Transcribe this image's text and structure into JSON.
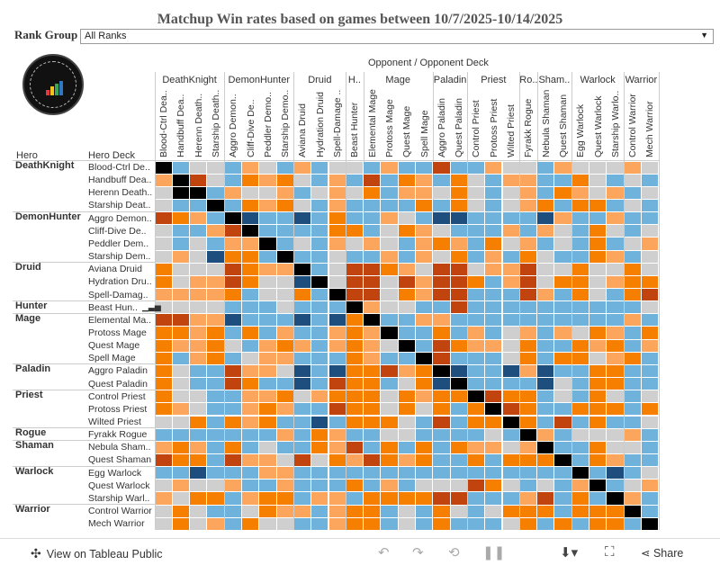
{
  "title": "Matchup  Win  rates  based  on  games  between  10/7/2025-10/14/2025",
  "filter": {
    "label": "Rank  Group",
    "value": "All Ranks",
    "caret": "▼"
  },
  "logo": {
    "icon": "data-reaper-logo",
    "colors": [
      "#e23b3b",
      "#f0c419",
      "#3aa655",
      "#2f79c4"
    ]
  },
  "axis": {
    "opponent_header": "Opponent  /  Opponent Deck",
    "row_hero_header": "Hero",
    "row_deck_header": "Hero Deck"
  },
  "footer": {
    "view_label": "View on Tableau Public",
    "share_label": "Share",
    "icons": [
      "tableau-icon",
      "undo-icon",
      "redo-icon",
      "revert-icon",
      "pause-icon",
      "download-icon",
      "fullscreen-icon",
      "share-icon"
    ]
  },
  "colors": {
    "dark_orange": "#c1440e",
    "orange": "#f77f00",
    "light_orange": "#fca55d",
    "gray": "#cfcfcf",
    "light_blue": "#6fb2dc",
    "blue": "#2e7ab8",
    "dark_blue": "#1d4e7e",
    "black": "#000000"
  },
  "chart_data": {
    "type": "heatmap",
    "col_classes": [
      "DeathKnight",
      "DemonHunter",
      "Druid",
      "H..",
      "Mage",
      "Paladin",
      "Priest",
      "Ro..",
      "Sham..",
      "Warlock",
      "Warrior"
    ],
    "row_classes": [
      "DeathKnight",
      "DemonHunter",
      "Druid",
      "Hunter",
      "Mage",
      "Paladin",
      "Priest",
      "Rogue",
      "Shaman",
      "Warlock",
      "Warrior"
    ],
    "columns": [
      {
        "cls": "DeathKnight",
        "deck": "Blood-Ctrl Dea.."
      },
      {
        "cls": "DeathKnight",
        "deck": "Handbuff Dea.."
      },
      {
        "cls": "DeathKnight",
        "deck": "Herenn Death.."
      },
      {
        "cls": "DeathKnight",
        "deck": "Starship Death.."
      },
      {
        "cls": "DemonHunter",
        "deck": "Aggro Demon.."
      },
      {
        "cls": "DemonHunter",
        "deck": "Cliff-Dive De.."
      },
      {
        "cls": "DemonHunter",
        "deck": "Peddler Demo.."
      },
      {
        "cls": "DemonHunter",
        "deck": "Starship Demo.."
      },
      {
        "cls": "Druid",
        "deck": "Aviana Druid"
      },
      {
        "cls": "Druid",
        "deck": "Hydration Druid"
      },
      {
        "cls": "Druid",
        "deck": "Spell-Damage .."
      },
      {
        "cls": "H..",
        "deck": "Beast Hunter"
      },
      {
        "cls": "Mage",
        "deck": "Elemental Mage"
      },
      {
        "cls": "Mage",
        "deck": "Protoss Mage"
      },
      {
        "cls": "Mage",
        "deck": "Quest Mage"
      },
      {
        "cls": "Mage",
        "deck": "Spell Mage"
      },
      {
        "cls": "Paladin",
        "deck": "Aggro Paladin"
      },
      {
        "cls": "Paladin",
        "deck": "Quest Paladin"
      },
      {
        "cls": "Priest",
        "deck": "Control Priest"
      },
      {
        "cls": "Priest",
        "deck": "Protoss Priest"
      },
      {
        "cls": "Priest",
        "deck": "Wilted Priest"
      },
      {
        "cls": "Ro..",
        "deck": "Fyrakk Rogue"
      },
      {
        "cls": "Sham..",
        "deck": "Nebula Shaman"
      },
      {
        "cls": "Sham..",
        "deck": "Quest Shaman"
      },
      {
        "cls": "Warlock",
        "deck": "Egg Warlock"
      },
      {
        "cls": "Warlock",
        "deck": "Quest Warlock"
      },
      {
        "cls": "Warlock",
        "deck": "Starship Warlo.."
      },
      {
        "cls": "Warrior",
        "deck": "Control Warrior"
      },
      {
        "cls": "Warrior",
        "deck": "Mech Warrior"
      }
    ],
    "rows": [
      {
        "hero": "DeathKnight",
        "deck": "Blood-Ctrl De..",
        "cells": "KBGGBLGBLBGGBLBBDBBLGGBLGGGLG"
      },
      {
        "hero": "",
        "deck": "Handbuff Dea..",
        "cells": "LKDGBOLOGBLBDBOLBOGBLLBBOGBGB"
      },
      {
        "hero": "",
        "deck": "Herenn Death..",
        "cells": "GKKBLGGLBGLGOBLLGOGBGLBOLGLBG"
      },
      {
        "hero": "",
        "deck": "Starship Deat..",
        "cells": "GBBKBOLOGBLBBBBOBOGBGLOBOOBGB"
      },
      {
        "hero": "DemonHunter",
        "deck": "Aggro Demon..",
        "cells": "DOLBKNBBNBOBBLGBNNBBBBNLBBLBB"
      },
      {
        "hero": "",
        "deck": "Cliff-Dive De..",
        "cells": "GBBLDKBBBBOOBGOLGBBBLBLGBOGBG"
      },
      {
        "hero": "",
        "deck": "Peddler Dem..",
        "cells": "GBGBLLKBGBLGLGBLOLBOGLBGBOBGL"
      },
      {
        "hero": "",
        "deck": "Starship Dem..",
        "cells": "GLGNOOBKBBGBBLBLGOBLBOGBBOLBG"
      },
      {
        "hero": "Druid",
        "deck": "Aviana Druid",
        "cells": "OGGGDOLLKBGDDOLGDDGLLDGGOGGOG"
      },
      {
        "hero": "",
        "deck": "Hydration Dru..",
        "cells": "OGLLDOGGNKGDDGDLDDOBLDGOOGLOO"
      },
      {
        "hero": "",
        "deck": "Spell-Damag..",
        "cells": "LLLLOBGGOBKDDGOLDDBBBDLBOGBOD"
      },
      {
        "hero": "Hunter",
        "deck": "Beast Hun..",
        "cells": "GGGGBBBGBBBKLGGBBDBBBBBBBBBBG"
      },
      {
        "hero": "Mage",
        "deck": "Elemental Ma..",
        "cells": "DDLLNBBBNBNOKBBLLBBBBBBBBBBLB"
      },
      {
        "hero": "",
        "deck": "Protoss Mage",
        "cells": "OOLOBOBLBBLOLKBBOBLBGLBLGOLBO"
      },
      {
        "hero": "",
        "deck": "Quest Mage",
        "cells": "OLLOGBLOLBLOLGKBDOLLGOBBOLOBL"
      },
      {
        "hero": "",
        "deck": "Spell Mage",
        "cells": "OBLOBGLLBBBOLBBKDBBBGOBOOGLOB"
      },
      {
        "hero": "Paladin",
        "deck": "Aggro Paladin",
        "cells": "OGBBDLLGNBNOODLOKNBBNLNBBOOBB"
      },
      {
        "hero": "",
        "deck": "Quest Paladin",
        "cells": "OGBBDOBBNBDOOBGONKBBBBNGBOOBB"
      },
      {
        "hero": "Priest",
        "deck": "Control Priest",
        "cells": "OGGBBLLOGLOOOGOLOOKDOOBGBOGBG"
      },
      {
        "hero": "",
        "deck": "Protoss Priest",
        "cells": "OLGBBLOLBBDOOGOGOBOKDOBBOOOBO"
      },
      {
        "hero": "",
        "deck": "Wilted Priest",
        "cells": "GGOBOLOBBNBOOOGBDBOOKOBDBOBBG"
      },
      {
        "hero": "Rogue",
        "deck": "Fyrakk Rogue",
        "cells": "BBBBBBBLBOLBBGGBBBBGBKLBGGGLB"
      },
      {
        "hero": "Shaman",
        "deck": "Nebula Sham..",
        "cells": "LOLBOBGBBOLDBOBOBOLLGLKBBOGGB"
      },
      {
        "hero": "",
        "deck": "Quest Shaman",
        "cells": "DOOBDLLGDGOLDOLOBBOBOOOKBOLBB"
      },
      {
        "hero": "Warlock",
        "deck": "Egg Warlock",
        "cells": "BBNBBBLLBBBBBBBBBBBBBBBBKBNBG"
      },
      {
        "hero": "",
        "deck": "Quest Warlock",
        "cells": "GLGGLBBLBBBOBLBGGGDOGBGBLKBGL"
      },
      {
        "hero": "",
        "deck": "Starship Warl..",
        "cells": "LGOOBLOOBLLBOOOODDBBBLDBOBKLB"
      },
      {
        "hero": "Warrior",
        "deck": "Control Warrior",
        "cells": "GOGBBGOLLBLOOBGBOGBGOOOBOOOKB"
      },
      {
        "hero": "",
        "deck": "Mech Warrior",
        "cells": "GOGLBOGGBBLOOBGBOBBBGOBOBOOBK"
      }
    ],
    "legend": {
      "D": "dark_orange",
      "O": "orange",
      "L": "light_orange",
      "G": "gray",
      "B": "light_blue",
      "N": "dark_blue",
      "K": "black"
    }
  }
}
